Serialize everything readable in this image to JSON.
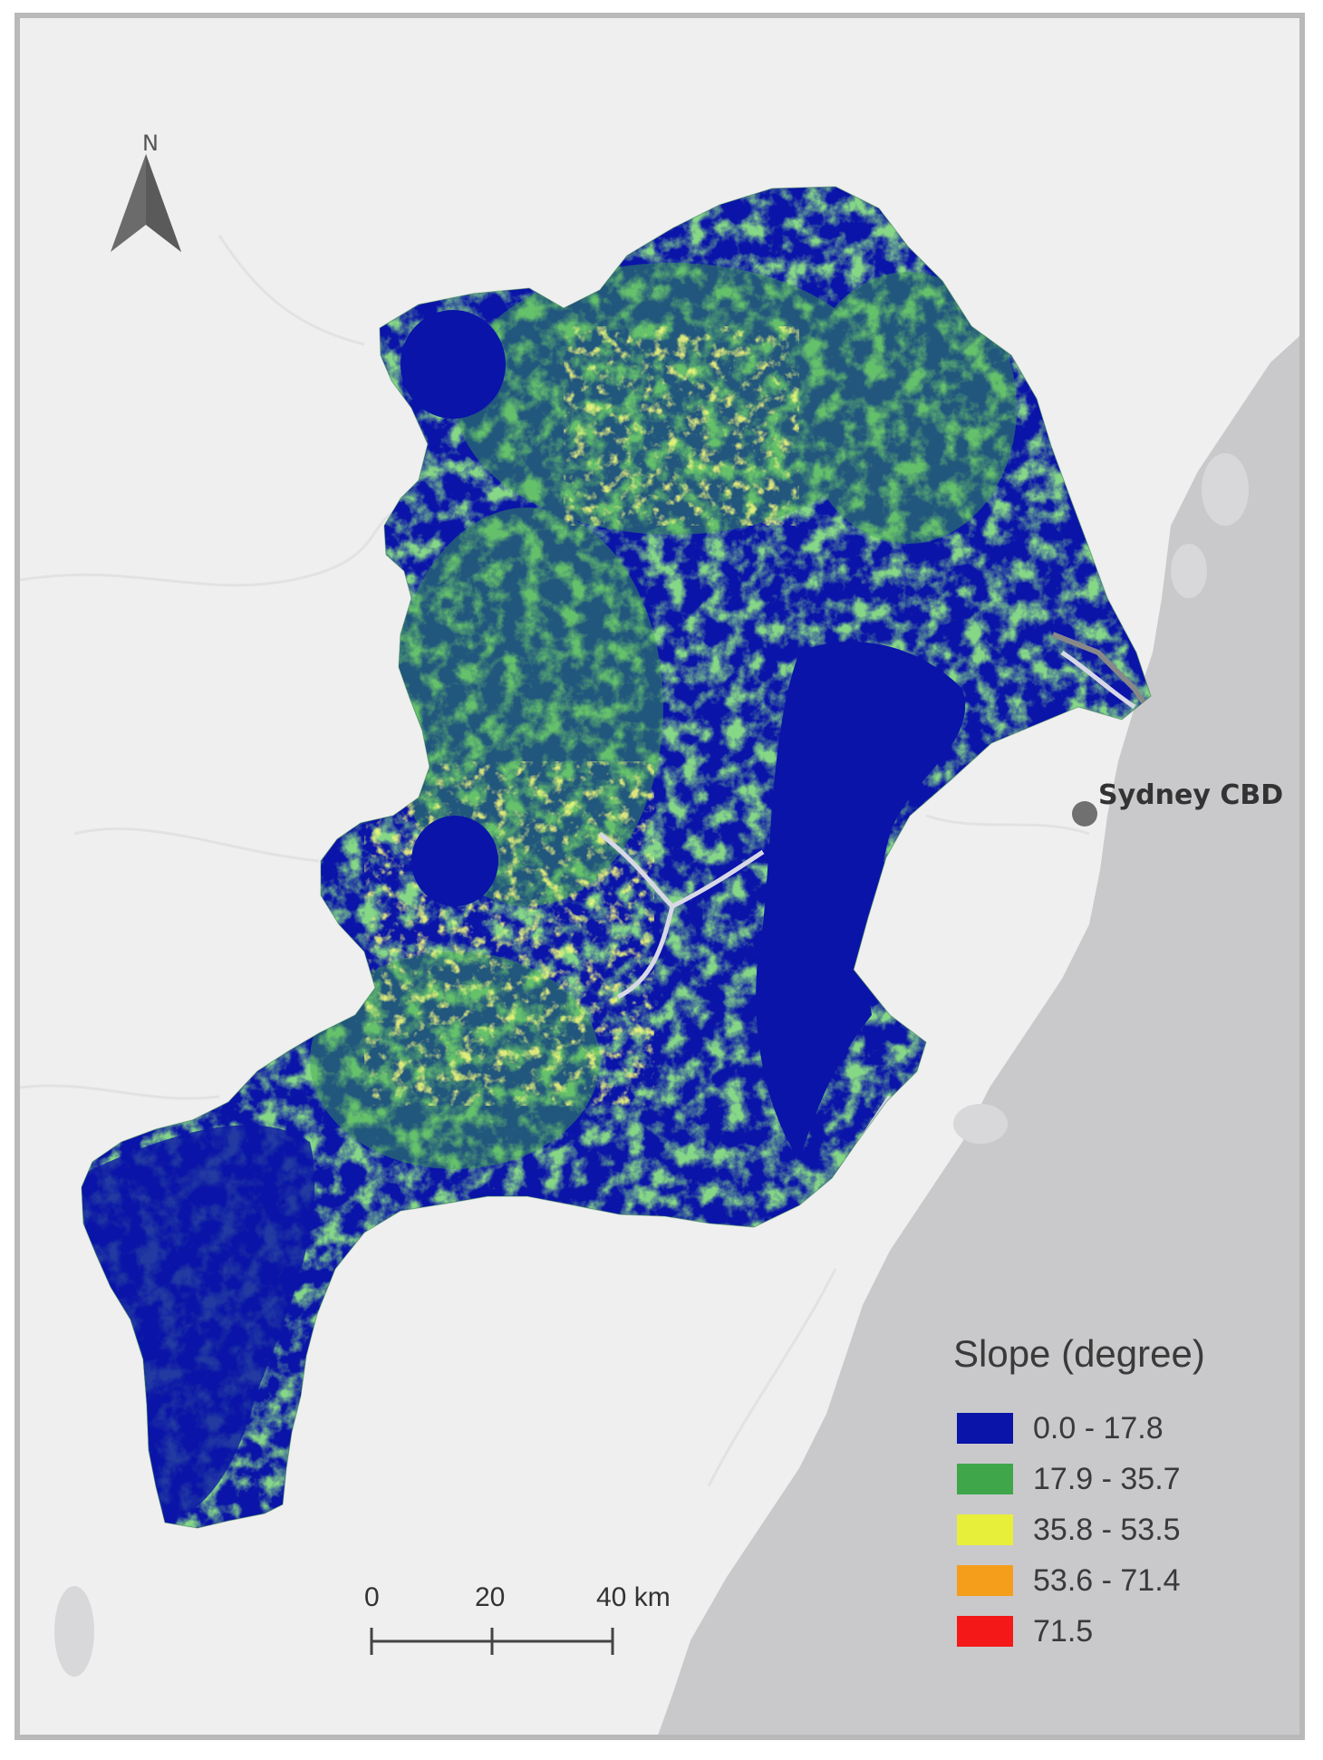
{
  "north_arrow": {
    "label": "N"
  },
  "city": {
    "label": "Sydney CBD"
  },
  "legend": {
    "title": "Slope (degree)",
    "items": [
      {
        "label": "0.0 - 17.8",
        "color": "#0a14a8"
      },
      {
        "label": "17.9 - 35.7",
        "color": "#3fa64a"
      },
      {
        "label": "35.8 - 53.5",
        "color": "#e8ef3a"
      },
      {
        "label": "53.6 - 71.4",
        "color": "#f59e1b"
      },
      {
        "label": "71.5",
        "color": "#f41818"
      }
    ]
  },
  "scale_bar": {
    "ticks": [
      "0",
      "20",
      "40 km"
    ]
  },
  "colors": {
    "background": "#efefef",
    "ocean": "#c9c9cb",
    "frame": "#b9b9b9",
    "low_slope": "#0a14a8",
    "mid_slope": "#3fa64a",
    "steep_slope": "#e8ef3a"
  }
}
